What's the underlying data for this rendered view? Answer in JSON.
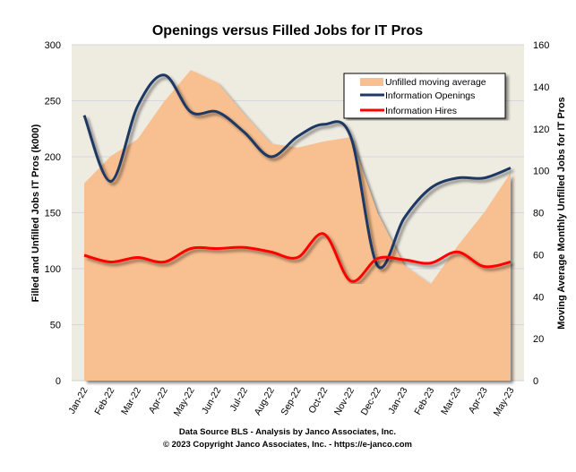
{
  "chart_data": {
    "type": "area+line",
    "title": "Openings versus Filled Jobs for IT Pros",
    "ylabel": "Filled and Unfilled Jobs IT Pros (k000)",
    "y2label": "Moving Average Monthly Unfilled Jobs for IT Pros",
    "ylim": [
      0,
      300
    ],
    "y2lim": [
      0,
      160
    ],
    "yticks": [
      0,
      50,
      100,
      150,
      200,
      250,
      300
    ],
    "y2ticks": [
      0,
      20,
      40,
      60,
      80,
      100,
      120,
      140,
      160
    ],
    "grid": true,
    "legend_placement": "top-right",
    "categories": [
      "Jan-22",
      "Feb-22",
      "Mar-22",
      "Apr-22",
      "May-22",
      "Jun-22",
      "Jul-22",
      "Aug-22",
      "Sep-22",
      "Oct-22",
      "Nov-22",
      "Dec-22",
      "Jan-23",
      "Feb-23",
      "Mar-23",
      "Apr-23",
      "May-23"
    ],
    "series": [
      {
        "name": "Unfilled moving average",
        "type": "area",
        "axis": "right",
        "color": "#F8BF90",
        "values": [
          94,
          107,
          115,
          133,
          148,
          142,
          127,
          113,
          111,
          114,
          116,
          80,
          55,
          46,
          64,
          80,
          99
        ]
      },
      {
        "name": "Information Openings",
        "type": "line",
        "axis": "left",
        "color": "#1F3864",
        "values": [
          237,
          178,
          245,
          273,
          240,
          240,
          222,
          200,
          218,
          229,
          218,
          103,
          145,
          172,
          181,
          181,
          190
        ]
      },
      {
        "name": "Information Hires",
        "type": "line",
        "axis": "left",
        "color": "#FF0000",
        "values": [
          112,
          106,
          110,
          106,
          118,
          118,
          119,
          115,
          110,
          131,
          89,
          109,
          108,
          105,
          115,
          102,
          106
        ]
      }
    ],
    "plot_background": "#EEEBE1"
  },
  "footer": {
    "line1": "Data Source BLS - Analysis by Janco Associates, Inc.",
    "line2": "© 2023 Copyright Janco Associates, Inc. - https://e-janco.com"
  }
}
